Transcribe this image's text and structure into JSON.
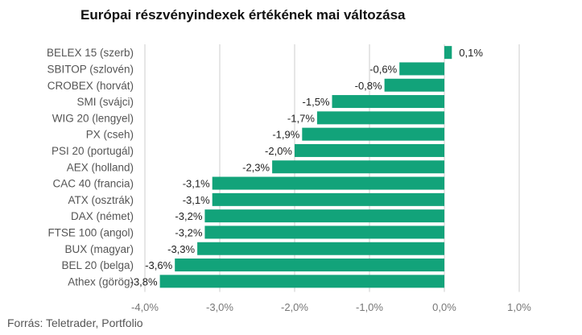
{
  "chart_data": {
    "type": "bar",
    "orientation": "horizontal",
    "title": "Európai részvényindexek értékének mai változása",
    "categories": [
      "BELEX 15 (szerb)",
      "SBITOP (szlovén)",
      "CROBEX (horvát)",
      "SMI (svájci)",
      "WIG 20 (lengyel)",
      "PX (cseh)",
      "PSI 20 (portugál)",
      "AEX (holland)",
      "CAC 40 (francia)",
      "ATX (osztrák)",
      "DAX (német)",
      "FTSE 100 (angol)",
      "BUX (magyar)",
      "BEL 20 (belga)",
      "Athex (görög)"
    ],
    "values": [
      0.1,
      -0.6,
      -0.8,
      -1.5,
      -1.7,
      -1.9,
      -2.0,
      -2.3,
      -3.1,
      -3.1,
      -3.2,
      -3.2,
      -3.3,
      -3.6,
      -3.8
    ],
    "value_labels": [
      "0,1%",
      "-0,6%",
      "-0,8%",
      "-1,5%",
      "-1,7%",
      "-1,9%",
      "-2,0%",
      "-2,3%",
      "-3,1%",
      "-3,1%",
      "-3,2%",
      "-3,2%",
      "-3,3%",
      "-3,6%",
      "-3,8%"
    ],
    "xlim": [
      -4.0,
      1.0
    ],
    "xticks": [
      -4.0,
      -3.0,
      -2.0,
      -1.0,
      0.0,
      1.0
    ],
    "xtick_labels": [
      "-4,0%",
      "-3,0%",
      "-2,0%",
      "-1,0%",
      "0,0%",
      "1,0%"
    ],
    "grid": "vertical",
    "bar_color": "#12a37a",
    "grid_color": "#cccccc"
  },
  "source": "Forrás: Teletrader, Portfolio"
}
